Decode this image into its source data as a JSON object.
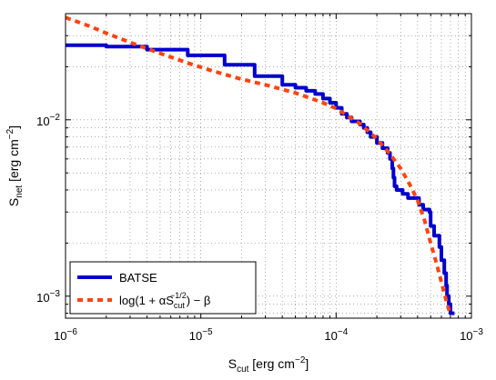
{
  "chart_data": {
    "type": "line",
    "xscale": "log",
    "yscale": "log",
    "xlim": [
      1e-06,
      0.001
    ],
    "ylim": [
      0.00075,
      0.04
    ],
    "grid": true,
    "legend_position": "bottom-left",
    "x_ticks": [
      {
        "value": 1e-06,
        "base": "10",
        "exp": "−6"
      },
      {
        "value": 1e-05,
        "base": "10",
        "exp": "−5"
      },
      {
        "value": 0.0001,
        "base": "10",
        "exp": "−4"
      },
      {
        "value": 0.001,
        "base": "10",
        "exp": "−3"
      }
    ],
    "y_ticks": [
      {
        "value": 0.001,
        "base": "10",
        "exp": "−3"
      },
      {
        "value": 0.01,
        "base": "10",
        "exp": "−2"
      }
    ],
    "xlabel": {
      "main": "S",
      "sub": "cut",
      "rest": " [erg cm",
      "sup": "−2",
      "end": "]"
    },
    "ylabel": {
      "main": "S",
      "sub": "net",
      "rest": " [erg cm",
      "sup": "−2",
      "end": "]"
    },
    "series": [
      {
        "name": "BATSE",
        "color": "#0000cc",
        "style": "solid",
        "x": [
          1e-06,
          2e-06,
          4e-06,
          8e-06,
          1.5e-05,
          2.5e-05,
          4e-05,
          5e-05,
          6e-05,
          7e-05,
          8e-05,
          9e-05,
          0.0001,
          0.00011,
          0.00012,
          0.00013,
          0.00015,
          0.00016,
          0.00017,
          0.00018,
          0.0002,
          0.00022,
          0.00024,
          0.00025,
          0.00026,
          0.000265,
          0.00027,
          0.00028,
          0.00031,
          0.00034,
          0.00038,
          0.00041,
          0.00044,
          0.00047,
          0.00049,
          0.0005,
          0.00053,
          0.00058,
          0.0006,
          0.00063,
          0.00065,
          0.00066,
          0.00068,
          0.0007,
          0.00075
        ],
        "y": [
          0.0265,
          0.026,
          0.025,
          0.0232,
          0.0205,
          0.0177,
          0.0158,
          0.0152,
          0.0146,
          0.014,
          0.0132,
          0.0125,
          0.0117,
          0.0108,
          0.0103,
          0.0098,
          0.0094,
          0.009,
          0.0085,
          0.008,
          0.0074,
          0.0069,
          0.0065,
          0.006,
          0.0053,
          0.0047,
          0.0042,
          0.004,
          0.0038,
          0.0036,
          0.0036,
          0.0033,
          0.0031,
          0.0031,
          0.003,
          0.0025,
          0.0022,
          0.0019,
          0.0016,
          0.00135,
          0.00115,
          0.001,
          0.0009,
          0.0008,
          0.0008
        ]
      },
      {
        "name": "log(1 + αS_cut^−1/2) − β",
        "color": "#ff4411",
        "style": "dashed",
        "x": [
          1e-06,
          1.5e-06,
          2e-06,
          3e-06,
          5e-06,
          8e-06,
          1.2e-05,
          2e-05,
          3e-05,
          5e-05,
          8e-05,
          0.0001,
          0.00015,
          0.0002,
          0.00025,
          0.0003,
          0.00035,
          0.0004,
          0.00045,
          0.0005,
          0.00055,
          0.0006,
          0.00065,
          0.0007
        ],
        "y": [
          0.038,
          0.034,
          0.031,
          0.0275,
          0.0238,
          0.021,
          0.019,
          0.017,
          0.0158,
          0.0142,
          0.0125,
          0.0116,
          0.0095,
          0.0078,
          0.0064,
          0.0053,
          0.0043,
          0.0035,
          0.0027,
          0.002,
          0.00155,
          0.0012,
          0.00095,
          0.00078
        ]
      }
    ],
    "legend": [
      {
        "label": "BATSE"
      },
      {
        "pre": "log(1 + αS",
        "sub": "cut",
        "sup": "−1/2",
        "post": ") − β"
      }
    ]
  }
}
